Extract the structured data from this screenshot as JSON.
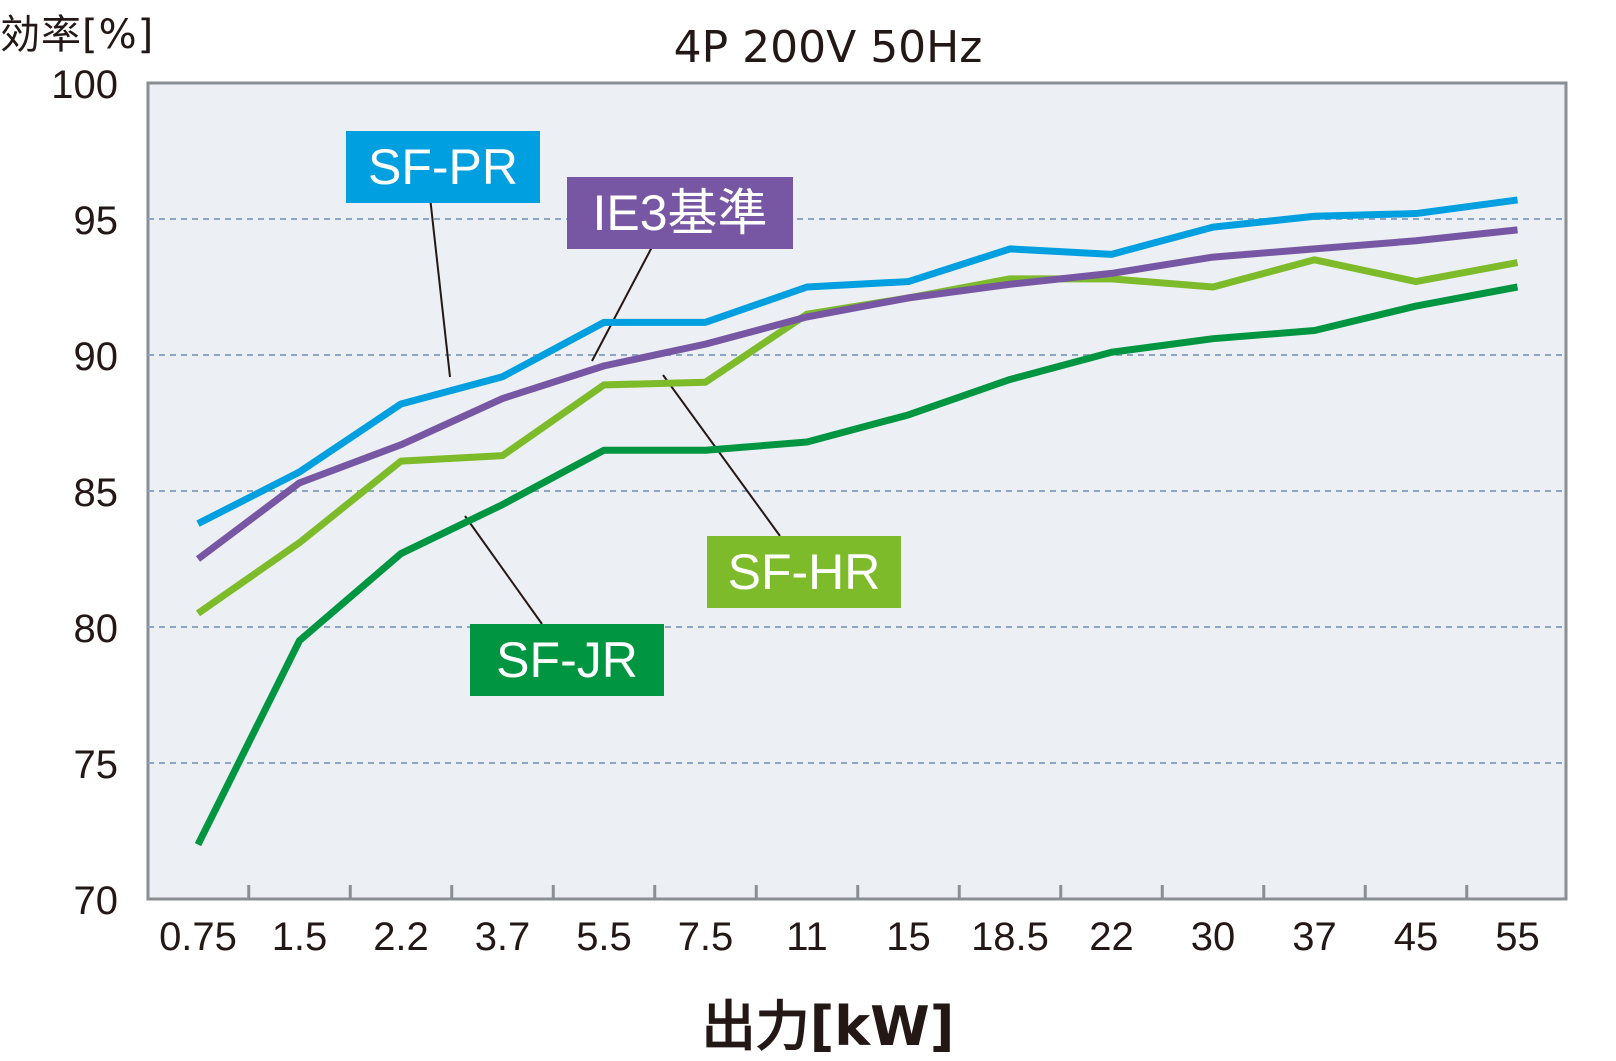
{
  "chart_data": {
    "type": "line",
    "title": "4P 200V 50Hz",
    "ylabel": "効率[%]",
    "xlabel": "出力[kW]",
    "ylim": [
      70,
      100
    ],
    "yticks": [
      70,
      75,
      80,
      85,
      90,
      95,
      100
    ],
    "categories": [
      "0.75",
      "1.5",
      "2.2",
      "3.7",
      "5.5",
      "7.5",
      "11",
      "15",
      "18.5",
      "22",
      "30",
      "37",
      "45",
      "55"
    ],
    "grid": "horizontal dashed",
    "series": [
      {
        "name": "SF-PR",
        "color": "#009fe0",
        "values": [
          83.8,
          85.7,
          88.2,
          89.2,
          91.2,
          91.2,
          92.5,
          92.7,
          93.9,
          93.7,
          94.7,
          95.1,
          95.2,
          95.7
        ]
      },
      {
        "name": "IE3基準",
        "color": "#7757a3",
        "values": [
          82.5,
          85.3,
          86.7,
          88.4,
          89.6,
          90.4,
          91.4,
          92.1,
          92.6,
          93.0,
          93.6,
          93.9,
          94.2,
          94.6
        ]
      },
      {
        "name": "SF-HR",
        "color": "#7dbb2b",
        "values": [
          80.5,
          83.1,
          86.1,
          86.3,
          88.9,
          89.0,
          91.5,
          92.1,
          92.8,
          92.8,
          92.5,
          93.5,
          92.7,
          93.4
        ]
      },
      {
        "name": "SF-JR",
        "color": "#009641",
        "values": [
          72.0,
          79.5,
          82.7,
          84.5,
          86.5,
          86.5,
          86.8,
          87.8,
          89.1,
          90.1,
          90.6,
          90.9,
          91.8,
          92.5
        ]
      }
    ]
  }
}
